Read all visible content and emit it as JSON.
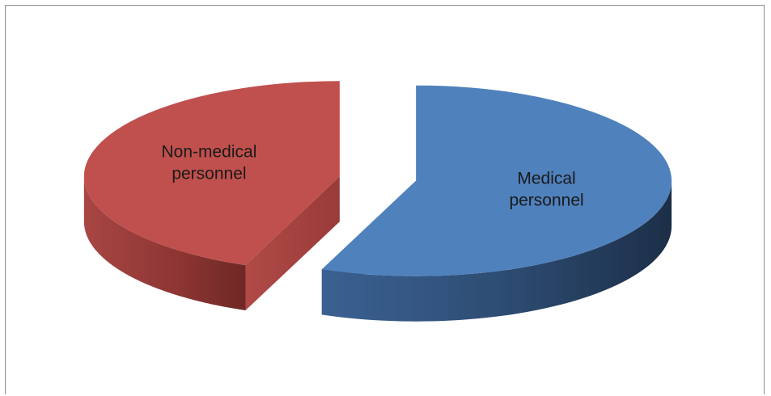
{
  "chart_data": {
    "type": "pie",
    "style": "3d-exploded",
    "title": "",
    "slices": [
      {
        "name": "Medical personnel",
        "label_lines": [
          "Medical",
          "personnel"
        ],
        "value": 56,
        "color": "#4F81BD",
        "side_color": "#2E4D74"
      },
      {
        "name": "Non-medical personnel",
        "label_lines": [
          "Non-medical",
          "personnel"
        ],
        "value": 44,
        "color": "#C0504D",
        "side_color": "#8C3532"
      }
    ],
    "legend": "none",
    "grid": false
  }
}
